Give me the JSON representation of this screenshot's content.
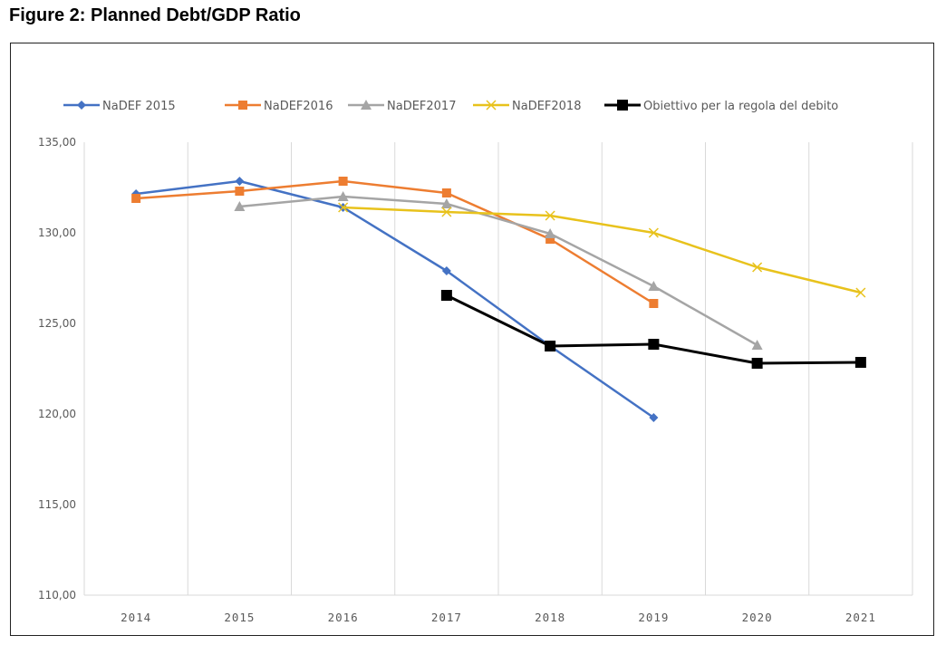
{
  "figure": {
    "title": "Figure 2: Planned Debt/GDP Ratio"
  },
  "chart_data": {
    "type": "line",
    "title": "Figure 2: Planned Debt/GDP Ratio",
    "xlabel": "",
    "ylabel": "",
    "categories": [
      "2014",
      "2015",
      "2016",
      "2017",
      "2018",
      "2019",
      "2020",
      "2021"
    ],
    "ylim": [
      110,
      135
    ],
    "yticks": [
      110,
      115,
      120,
      125,
      130,
      135
    ],
    "ytick_labels": [
      "110,00",
      "115,00",
      "120,00",
      "125,00",
      "130,00",
      "135,00"
    ],
    "grid": "vertical",
    "legend_position": "top",
    "series": [
      {
        "name": "NaDEF 2015",
        "color": "#4472C4",
        "marker": "diamond",
        "values": [
          132.15,
          132.85,
          131.4,
          127.9,
          123.75,
          119.8,
          null,
          null
        ]
      },
      {
        "name": "NaDEF2016",
        "color": "#ED7D31",
        "marker": "square",
        "values": [
          131.9,
          132.3,
          132.85,
          132.2,
          129.65,
          126.1,
          null,
          null
        ]
      },
      {
        "name": "NaDEF2017",
        "color": "#A5A5A5",
        "marker": "triangle",
        "values": [
          null,
          131.45,
          132.0,
          131.6,
          129.95,
          127.05,
          123.8,
          null
        ]
      },
      {
        "name": "NaDEF2018",
        "color": "#E8C21C",
        "marker": "x",
        "values": [
          null,
          null,
          131.4,
          131.15,
          130.95,
          130.0,
          128.1,
          126.7
        ]
      },
      {
        "name": "Obiettivo per la regola del debito",
        "color": "#000000",
        "marker": "square-large",
        "values": [
          null,
          null,
          null,
          126.55,
          123.75,
          123.85,
          122.8,
          122.85
        ]
      }
    ]
  }
}
